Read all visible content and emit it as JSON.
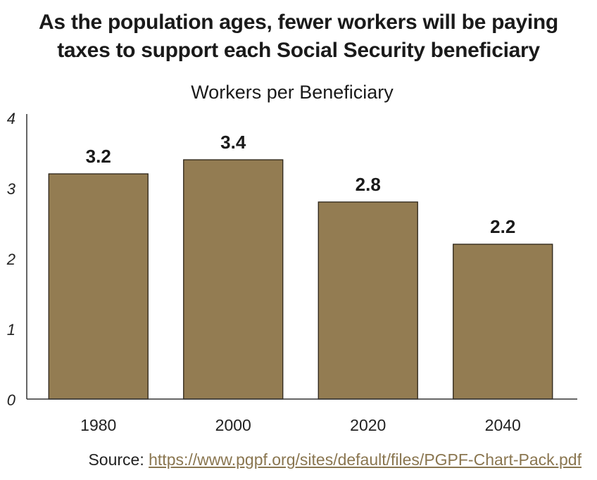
{
  "title_lines": [
    "As the population ages, fewer workers will be paying",
    "taxes to support each Social Security beneficiary"
  ],
  "source": {
    "prefix": "Source: ",
    "link_text": "https://www.pgpf.org/sites/default/files/PGPF-Chart-Pack.pdf"
  },
  "colors": {
    "bar_fill": "#937c52",
    "bar_stroke": "#2b2418",
    "axis": "#333333",
    "link": "#8a7650"
  },
  "chart_data": {
    "type": "bar",
    "title": "Workers per Beneficiary",
    "categories": [
      "1980",
      "2000",
      "2020",
      "2040"
    ],
    "values": [
      3.2,
      3.4,
      2.8,
      2.2
    ],
    "data_labels": [
      "3.2",
      "3.4",
      "2.8",
      "2.2"
    ],
    "xlabel": "",
    "ylabel": "",
    "ylim": [
      0,
      4
    ],
    "yticks": [
      "0",
      "1",
      "2",
      "3",
      "4"
    ],
    "grid": false,
    "legend": "none"
  }
}
